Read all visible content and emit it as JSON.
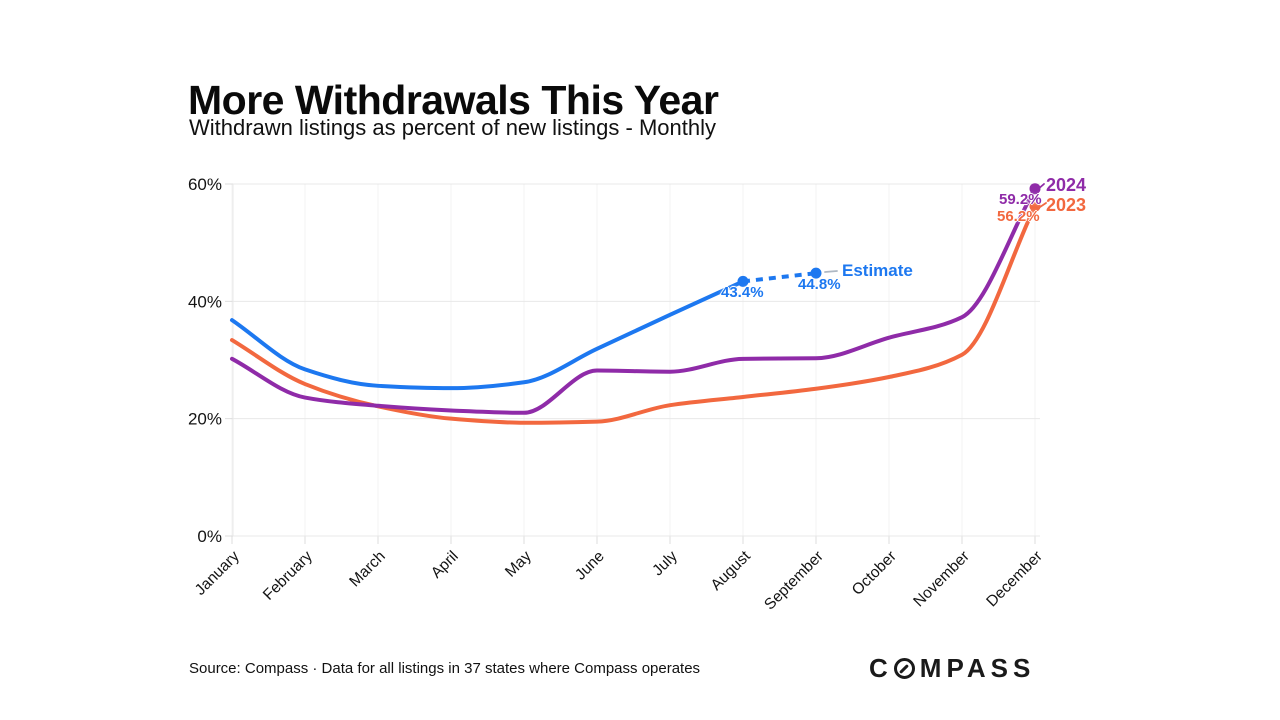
{
  "header": {
    "title": "More Withdrawals This Year",
    "subtitle": "Withdrawn listings as percent of new listings - Monthly"
  },
  "annotations": {
    "estimate_label": "Estimate",
    "august_value": "43.4%",
    "september_value": "44.8%",
    "year_2024_label": "2024",
    "dec_2024_value": "59.2%",
    "year_2023_label": "2023",
    "dec_2023_value": "56.2%"
  },
  "footer": {
    "source": "Source: Compass · Data for all listings in 37 states where Compass operates",
    "brand_full": "COMPASS",
    "brand_prefix": "C",
    "brand_suffix": "MPASS"
  },
  "chart_data": {
    "type": "line",
    "title": "More Withdrawals This Year",
    "subtitle": "Withdrawn listings as percent of new listings - Monthly",
    "categories": [
      "January",
      "February",
      "March",
      "April",
      "May",
      "June",
      "July",
      "August",
      "September",
      "October",
      "November",
      "December"
    ],
    "y_ticks": [
      {
        "value": 0,
        "label": "0%"
      },
      {
        "value": 20,
        "label": "20%"
      },
      {
        "value": 40,
        "label": "40%"
      },
      {
        "value": 60,
        "label": "60%"
      }
    ],
    "ylim": [
      0,
      60
    ],
    "grid": true,
    "legend_position": "inline-end-labels",
    "series": [
      {
        "id": "2023",
        "name": "2023",
        "color": "#F2683F",
        "values": [
          33.4,
          25.9,
          22.1,
          20.0,
          19.3,
          19.5,
          22.3,
          23.7,
          25.1,
          27.1,
          30.9,
          56.2
        ],
        "end_label": "2023",
        "end_value_label": "56.2%"
      },
      {
        "id": "2024",
        "name": "2024",
        "color": "#8F2BA8",
        "values": [
          30.2,
          23.6,
          22.2,
          21.4,
          21.0,
          28.2,
          28.0,
          30.2,
          30.3,
          33.8,
          37.3,
          59.2
        ],
        "end_label": "2024",
        "end_value_label": "59.2%"
      },
      {
        "id": "current-year",
        "name": "",
        "color": "#1D78F0",
        "values": [
          36.8,
          28.4,
          25.6,
          25.2,
          26.2,
          31.9,
          37.7,
          43.4,
          44.8
        ],
        "estimate_start_index": 7,
        "estimate_label": "Estimate",
        "point_value_labels": [
          {
            "index": 7,
            "label": "43.4%"
          },
          {
            "index": 8,
            "label": "44.8%"
          }
        ]
      }
    ]
  }
}
